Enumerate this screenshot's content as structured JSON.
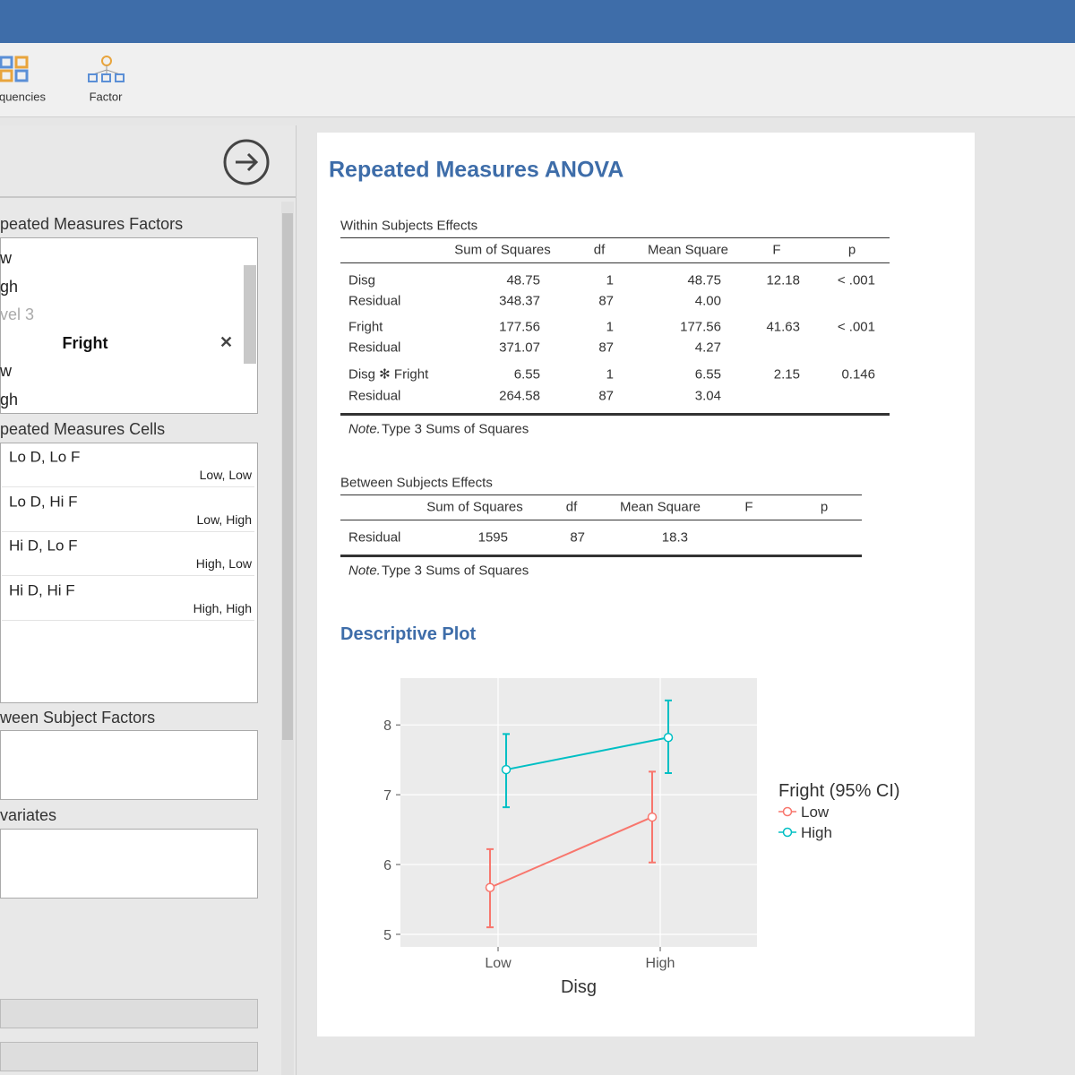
{
  "toolbar": {
    "items": [
      "quencies",
      "Factor"
    ]
  },
  "options": {
    "rm_factors": {
      "label": "peated Measures Factors",
      "items": [
        "w",
        "gh",
        "vel 3",
        "Fright",
        "w",
        "gh"
      ]
    },
    "rm_cells": {
      "label": "peated Measures Cells",
      "cells": [
        {
          "name": "Lo D, Lo F",
          "levels": "Low, Low"
        },
        {
          "name": "Lo D, Hi F",
          "levels": "Low, High"
        },
        {
          "name": "Hi D, Lo F",
          "levels": "High, Low"
        },
        {
          "name": "Hi D, Hi F",
          "levels": "High, High"
        }
      ]
    },
    "between": {
      "label": "ween Subject Factors"
    },
    "covariates": {
      "label": "variates"
    }
  },
  "results": {
    "title": "Repeated Measures ANOVA",
    "within": {
      "caption": "Within Subjects Effects",
      "columns": [
        "Sum of Squares",
        "df",
        "Mean Square",
        "F",
        "p"
      ],
      "rows": [
        [
          "Disg",
          "48.75",
          "1",
          "48.75",
          "12.18",
          "< .001"
        ],
        [
          "Residual",
          "348.37",
          "87",
          "4.00"
        ],
        [
          "Fright",
          "177.56",
          "1",
          "177.56",
          "41.63",
          "< .001"
        ],
        [
          "Residual",
          "371.07",
          "87",
          "4.27"
        ],
        [
          "Disg ✻ Fright",
          "6.55",
          "1",
          "6.55",
          "2.15",
          "0.146"
        ],
        [
          "Residual",
          "264.58",
          "87",
          "3.04"
        ]
      ],
      "note": {
        "label": "Note.",
        "text": "Type 3 Sums of Squares"
      }
    },
    "between": {
      "caption": "Between Subjects Effects",
      "columns": [
        "Sum of Squares",
        "df",
        "Mean Square",
        "F",
        "p"
      ],
      "rows": [
        [
          "Residual",
          "1595",
          "87",
          "18.3"
        ]
      ],
      "note": {
        "label": "Note.",
        "text": "Type 3 Sums of Squares"
      }
    },
    "plot_title": "Descriptive Plot"
  },
  "chart_data": {
    "type": "line",
    "x_label": "Disg",
    "legend_title": "Fright (95% CI)",
    "categories": [
      "Low",
      "High"
    ],
    "series": [
      {
        "name": "Low",
        "color": "#f8766d",
        "values": [
          5.67,
          6.68
        ],
        "lower": [
          5.1,
          6.03
        ],
        "upper": [
          6.22,
          7.33
        ]
      },
      {
        "name": "High",
        "color": "#00bfc4",
        "values": [
          7.36,
          7.82
        ],
        "lower": [
          6.82,
          7.31
        ],
        "upper": [
          7.87,
          8.35
        ]
      }
    ],
    "ylim": [
      4.82,
      8.67
    ],
    "yticks": [
      5,
      6,
      7,
      8
    ],
    "grid": true
  }
}
